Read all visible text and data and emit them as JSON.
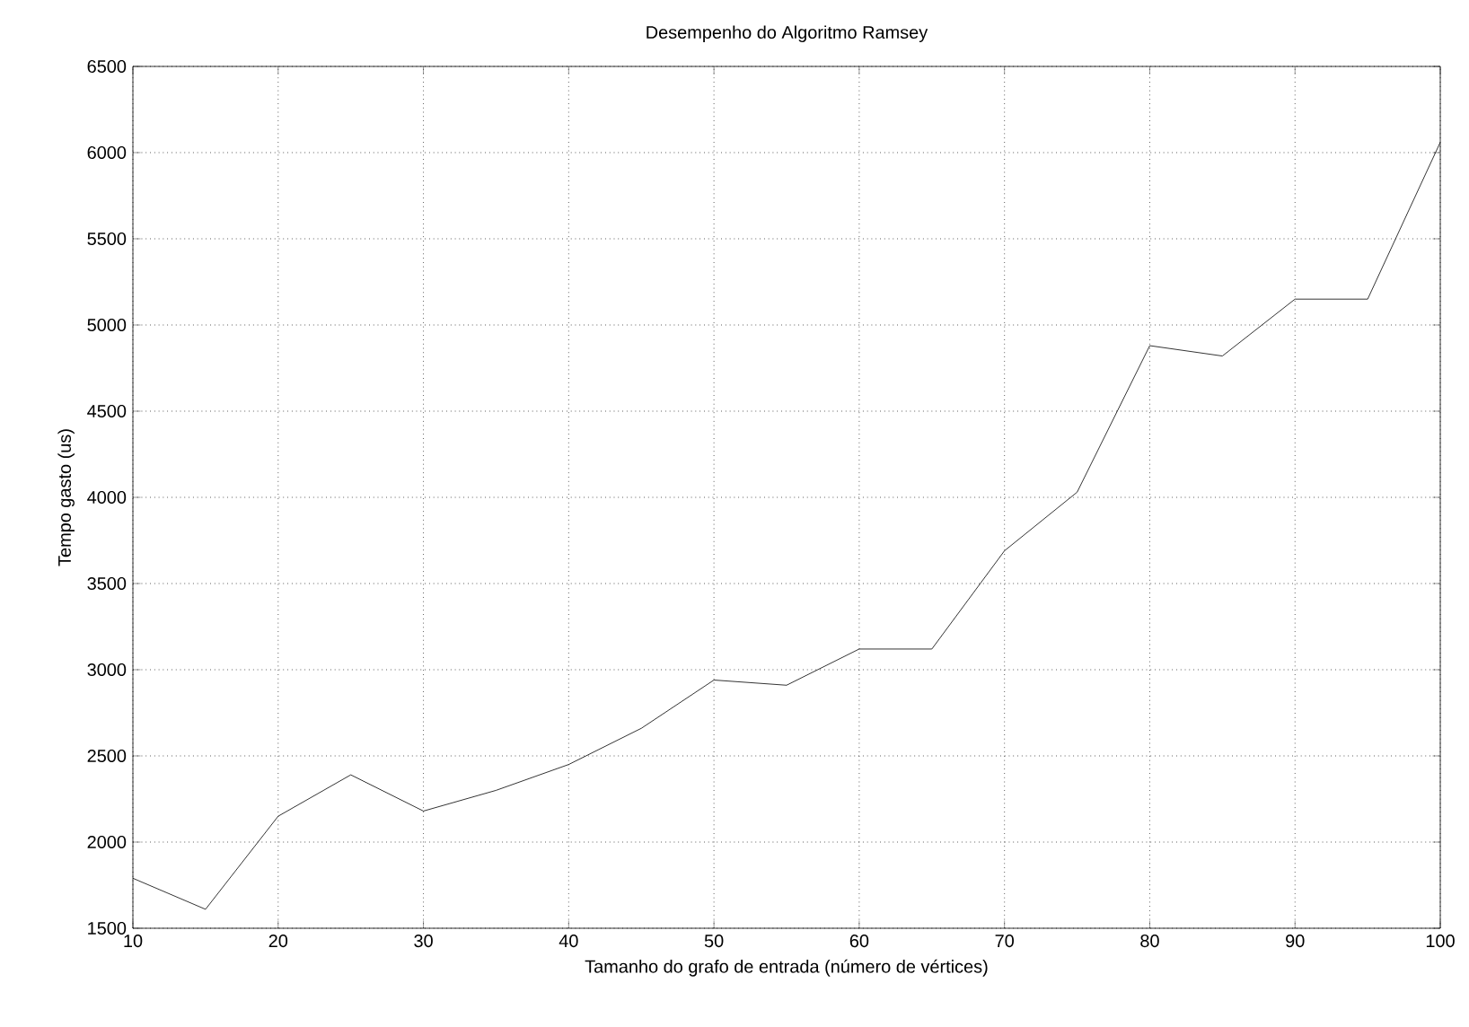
{
  "chart_data": {
    "type": "line",
    "title": "Desempenho do Algoritmo Ramsey",
    "xlabel": "Tamanho do grafo de entrada (número de vértices)",
    "ylabel": "Tempo gasto (us)",
    "x": [
      10,
      15,
      20,
      25,
      30,
      35,
      40,
      45,
      50,
      55,
      60,
      65,
      70,
      75,
      80,
      85,
      90,
      95,
      100
    ],
    "series": [
      {
        "color": "#000000",
        "values": [
          1790,
          1610,
          2150,
          2390,
          2180,
          2300,
          2450,
          2660,
          2940,
          2910,
          3120,
          3120,
          3690,
          4030,
          4880,
          4820,
          5150,
          5150,
          6060
        ]
      }
    ],
    "xlim": [
      10,
      100
    ],
    "ylim": [
      1500,
      6500
    ],
    "xticks": [
      10,
      20,
      30,
      40,
      50,
      60,
      70,
      80,
      90,
      100
    ],
    "yticks": [
      1500,
      2000,
      2500,
      3000,
      3500,
      4000,
      4500,
      5000,
      5500,
      6000,
      6500
    ],
    "grid": true,
    "marker": "none",
    "line_style": "solid"
  }
}
